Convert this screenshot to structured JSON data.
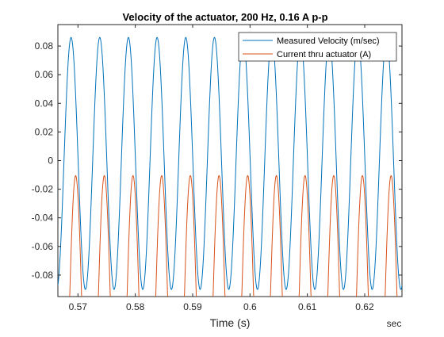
{
  "chart_data": {
    "type": "line",
    "title": "Velocity of the actuator, 200 Hz, 0.16 A p-p",
    "xlabel": "Time (s)",
    "x_unit_label": "sec",
    "ylabel": "",
    "xlim": [
      0.5665,
      0.6265
    ],
    "ylim": [
      -0.095,
      0.095
    ],
    "x_ticks": [
      0.57,
      0.58,
      0.59,
      0.6,
      0.61,
      0.62
    ],
    "x_tick_labels": [
      "0.57",
      "0.58",
      "0.59",
      "0.6",
      "0.61",
      "0.62"
    ],
    "y_ticks": [
      -0.08,
      -0.06,
      -0.04,
      -0.02,
      0,
      0.02,
      0.04,
      0.06,
      0.08
    ],
    "y_tick_labels": [
      "-0.08",
      "-0.06",
      "-0.04",
      "-0.02",
      "0",
      "0.02",
      "0.04",
      "0.06",
      "0.08"
    ],
    "grid": false,
    "legend_position": "top-right",
    "series": [
      {
        "name": "Measured Velocity (m/sec)",
        "color": "#0072BD",
        "frequency_hz": 200,
        "amplitude": 0.088,
        "offset": -0.002,
        "peak_times": [
          0.5688,
          0.5738,
          0.5788,
          0.5838,
          0.5888,
          0.5938,
          0.5988,
          0.6038,
          0.6088,
          0.6138,
          0.6188,
          0.6238
        ],
        "peak_value": 0.086,
        "trough_value": -0.09
      },
      {
        "name": "Current thru actuator (A)",
        "color": "#D95319",
        "frequency_hz": 200,
        "peak_times": [
          0.5696,
          0.5746,
          0.5796,
          0.5846,
          0.5896,
          0.5946,
          0.5996,
          0.6046,
          0.6096,
          0.6146,
          0.6196,
          0.6246
        ],
        "peak_value": -0.0105,
        "trough_value": -0.096,
        "shape": "clipped-sine"
      }
    ]
  }
}
